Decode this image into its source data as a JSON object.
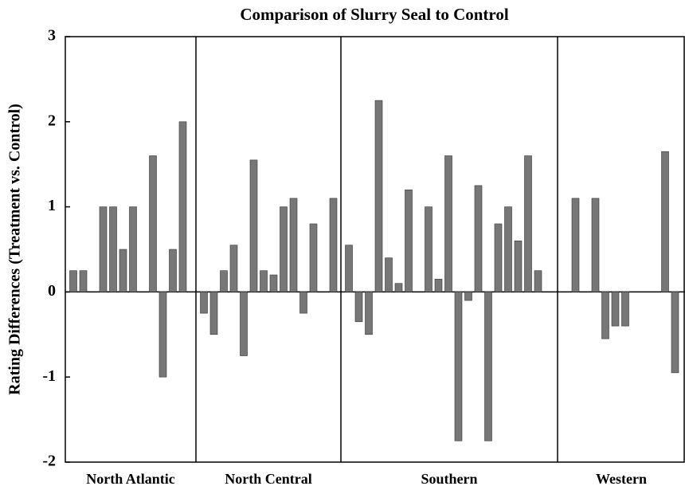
{
  "chart_data": {
    "type": "bar",
    "title": "Comparison of Slurry Seal to Control",
    "y_label": "Rating Differences (Treatment vs. Control)",
    "color": "#777777",
    "ylim": [
      -2,
      3
    ],
    "yticks": [
      -2,
      -1,
      0,
      1,
      2,
      3
    ],
    "groups": [
      {
        "name": "North Atlantic",
        "values": [
          0.25,
          0.25,
          null,
          1.0,
          1.0,
          0.5,
          1.0,
          null,
          1.6,
          -1.0,
          0.5,
          2.0
        ]
      },
      {
        "name": "North Central",
        "values": [
          -0.25,
          -0.5,
          0.25,
          0.55,
          -0.75,
          1.55,
          0.25,
          0.2,
          1.0,
          1.1,
          -0.25,
          0.8,
          null,
          1.1
        ]
      },
      {
        "name": "Southern",
        "values": [
          0.55,
          -0.35,
          -0.5,
          2.25,
          0.4,
          0.1,
          1.2,
          null,
          1.0,
          0.15,
          1.6,
          -1.75,
          -0.1,
          1.25,
          -1.75,
          0.8,
          1.0,
          0.6,
          1.6,
          0.25
        ]
      },
      {
        "name": "Western",
        "values": [
          null,
          1.1,
          null,
          1.1,
          -0.55,
          -0.4,
          -0.4,
          null,
          null,
          null,
          1.65,
          -0.95
        ]
      }
    ]
  }
}
